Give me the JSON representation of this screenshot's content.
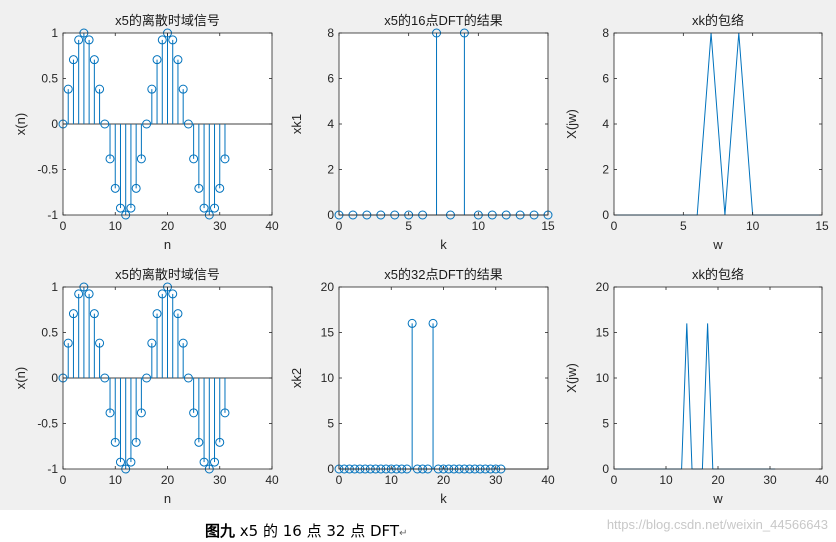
{
  "caption": {
    "label": "图九",
    "text": "x5 的 16 点  32 点 DFT",
    "mark": "↵"
  },
  "watermark": "https://blog.csdn.net/weixin_44566643",
  "colors": {
    "series": "#0072bd",
    "axes": "#262626",
    "figure_bg": "#f0f0f0",
    "plot_bg": "#ffffff"
  },
  "chart_data": [
    {
      "type": "stem",
      "title": "x5的离散时域信号",
      "xlabel": "n",
      "ylabel": "x(n)",
      "xlim": [
        0,
        40
      ],
      "ylim": [
        -1,
        1
      ],
      "xticks": [
        0,
        10,
        20,
        30,
        40
      ],
      "yticks": [
        -1,
        -0.5,
        0,
        0.5,
        1
      ],
      "x": [
        0,
        1,
        2,
        3,
        4,
        5,
        6,
        7,
        8,
        9,
        10,
        11,
        12,
        13,
        14,
        15,
        16,
        17,
        18,
        19,
        20,
        21,
        22,
        23,
        24,
        25,
        26,
        27,
        28,
        29,
        30,
        31
      ],
      "y": [
        0,
        0.383,
        0.707,
        0.924,
        1,
        0.924,
        0.707,
        0.383,
        0,
        -0.383,
        -0.707,
        -0.924,
        -1,
        -0.924,
        -0.707,
        -0.383,
        0,
        0.383,
        0.707,
        0.924,
        1,
        0.924,
        0.707,
        0.383,
        0,
        -0.383,
        -0.707,
        -0.924,
        -1,
        -0.924,
        -0.707,
        -0.383
      ]
    },
    {
      "type": "stem",
      "title": "x5的16点DFT的结果",
      "xlabel": "k",
      "ylabel": "xk1",
      "xlim": [
        0,
        15
      ],
      "ylim": [
        0,
        8
      ],
      "xticks": [
        0,
        5,
        10,
        15
      ],
      "yticks": [
        0,
        2,
        4,
        6,
        8
      ],
      "x": [
        0,
        1,
        2,
        3,
        4,
        5,
        6,
        7,
        8,
        9,
        10,
        11,
        12,
        13,
        14,
        15
      ],
      "y": [
        0,
        0,
        0,
        0,
        0,
        0,
        0,
        8,
        0,
        8,
        0,
        0,
        0,
        0,
        0,
        0
      ]
    },
    {
      "type": "line",
      "title": "xk的包络",
      "xlabel": "w",
      "ylabel": "X(jw)",
      "xlim": [
        0,
        15
      ],
      "ylim": [
        0,
        8
      ],
      "xticks": [
        0,
        5,
        10,
        15
      ],
      "yticks": [
        0,
        2,
        4,
        6,
        8
      ],
      "x": [
        0,
        1,
        2,
        3,
        4,
        5,
        6,
        7,
        8,
        9,
        10,
        11,
        12,
        13,
        14,
        15
      ],
      "y": [
        0,
        0,
        0,
        0,
        0,
        0,
        0,
        8,
        0,
        8,
        0,
        0,
        0,
        0,
        0,
        0
      ]
    },
    {
      "type": "stem",
      "title": "x5的离散时域信号",
      "xlabel": "n",
      "ylabel": "x(n)",
      "xlim": [
        0,
        40
      ],
      "ylim": [
        -1,
        1
      ],
      "xticks": [
        0,
        10,
        20,
        30,
        40
      ],
      "yticks": [
        -1,
        -0.5,
        0,
        0.5,
        1
      ],
      "x": [
        0,
        1,
        2,
        3,
        4,
        5,
        6,
        7,
        8,
        9,
        10,
        11,
        12,
        13,
        14,
        15,
        16,
        17,
        18,
        19,
        20,
        21,
        22,
        23,
        24,
        25,
        26,
        27,
        28,
        29,
        30,
        31
      ],
      "y": [
        0,
        0.383,
        0.707,
        0.924,
        1,
        0.924,
        0.707,
        0.383,
        0,
        -0.383,
        -0.707,
        -0.924,
        -1,
        -0.924,
        -0.707,
        -0.383,
        0,
        0.383,
        0.707,
        0.924,
        1,
        0.924,
        0.707,
        0.383,
        0,
        -0.383,
        -0.707,
        -0.924,
        -1,
        -0.924,
        -0.707,
        -0.383
      ]
    },
    {
      "type": "stem",
      "title": "x5的32点DFT的结果",
      "xlabel": "k",
      "ylabel": "xk2",
      "xlim": [
        0,
        40
      ],
      "ylim": [
        0,
        20
      ],
      "xticks": [
        0,
        10,
        20,
        30,
        40
      ],
      "yticks": [
        0,
        5,
        10,
        15,
        20
      ],
      "x": [
        0,
        1,
        2,
        3,
        4,
        5,
        6,
        7,
        8,
        9,
        10,
        11,
        12,
        13,
        14,
        15,
        16,
        17,
        18,
        19,
        20,
        21,
        22,
        23,
        24,
        25,
        26,
        27,
        28,
        29,
        30,
        31
      ],
      "y": [
        0,
        0,
        0,
        0,
        0,
        0,
        0,
        0,
        0,
        0,
        0,
        0,
        0,
        0,
        16,
        0,
        0,
        0,
        16,
        0,
        0,
        0,
        0,
        0,
        0,
        0,
        0,
        0,
        0,
        0,
        0,
        0
      ]
    },
    {
      "type": "line",
      "title": "xk的包络",
      "xlabel": "w",
      "ylabel": "X(jw)",
      "xlim": [
        0,
        40
      ],
      "ylim": [
        0,
        20
      ],
      "xticks": [
        0,
        10,
        20,
        30,
        40
      ],
      "yticks": [
        0,
        5,
        10,
        15,
        20
      ],
      "x": [
        0,
        1,
        2,
        3,
        4,
        5,
        6,
        7,
        8,
        9,
        10,
        11,
        12,
        13,
        14,
        15,
        16,
        17,
        18,
        19,
        20,
        21,
        22,
        23,
        24,
        25,
        26,
        27,
        28,
        29,
        30,
        31
      ],
      "y": [
        0,
        0,
        0,
        0,
        0,
        0,
        0,
        0,
        0,
        0,
        0,
        0,
        0,
        0,
        16,
        0,
        0,
        0,
        16,
        0,
        0,
        0,
        0,
        0,
        0,
        0,
        0,
        0,
        0,
        0,
        0,
        0
      ]
    }
  ]
}
